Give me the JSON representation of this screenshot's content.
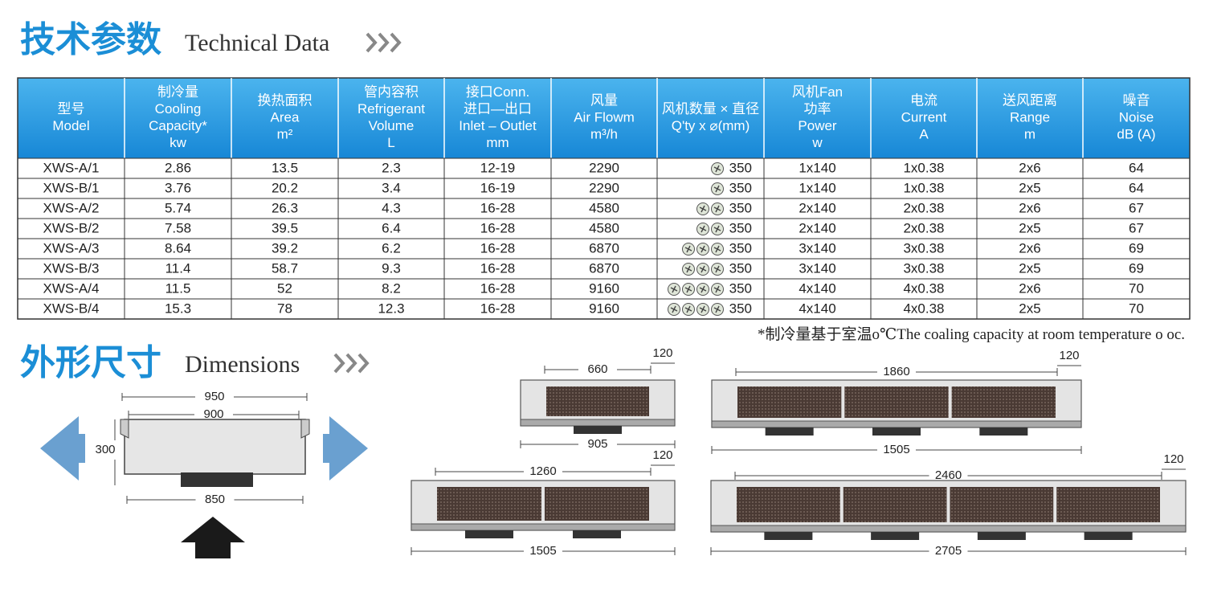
{
  "header": {
    "title_cn": "技术参数",
    "title_en": "Technical Data"
  },
  "table": {
    "columns": [
      [
        "型号",
        "Model"
      ],
      [
        "制冷量",
        "Cooling",
        "Capacity*",
        "kw"
      ],
      [
        "换热面积",
        "Area",
        "m²"
      ],
      [
        "管内容积",
        "Refrigerant",
        "Volume",
        "L"
      ],
      [
        "接口Conn.",
        "进口—出口",
        "Inlet – Outlet",
        "mm"
      ],
      [
        "风量",
        "Air Flowm",
        "m³/h"
      ],
      [
        "风机数量 × 直径",
        "Q'ty x ⌀(mm)"
      ],
      [
        "风机Fan",
        "功率",
        "Power",
        "w"
      ],
      [
        "电流",
        "Current",
        "A"
      ],
      [
        "送风距离",
        "Range",
        "m"
      ],
      [
        "噪音",
        "Noise",
        "dB (A)"
      ]
    ],
    "rows": [
      [
        "XWS-A/1",
        "2.86",
        "13.5",
        "2.3",
        "12-19",
        "2290",
        "350",
        "1x140",
        "1x0.38",
        "2x6",
        "64"
      ],
      [
        "XWS-B/1",
        "3.76",
        "20.2",
        "3.4",
        "16-19",
        "2290",
        "350",
        "1x140",
        "1x0.38",
        "2x5",
        "64"
      ],
      [
        "XWS-A/2",
        "5.74",
        "26.3",
        "4.3",
        "16-28",
        "4580",
        "350",
        "2x140",
        "2x0.38",
        "2x6",
        "67"
      ],
      [
        "XWS-B/2",
        "7.58",
        "39.5",
        "6.4",
        "16-28",
        "4580",
        "350",
        "2x140",
        "2x0.38",
        "2x5",
        "67"
      ],
      [
        "XWS-A/3",
        "8.64",
        "39.2",
        "6.2",
        "16-28",
        "6870",
        "350",
        "3x140",
        "3x0.38",
        "2x6",
        "69"
      ],
      [
        "XWS-B/3",
        "11.4",
        "58.7",
        "9.3",
        "16-28",
        "6870",
        "350",
        "3x140",
        "3x0.38",
        "2x5",
        "69"
      ],
      [
        "XWS-A/4",
        "11.5",
        "52",
        "8.2",
        "16-28",
        "9160",
        "350",
        "4x140",
        "4x0.38",
        "2x6",
        "70"
      ],
      [
        "XWS-B/4",
        "15.3",
        "78",
        "12.3",
        "16-28",
        "9160",
        "350",
        "4x140",
        "4x0.38",
        "2x5",
        "70"
      ]
    ],
    "fan_icons": [
      1,
      1,
      2,
      2,
      3,
      3,
      4,
      4
    ],
    "footnote": "*制冷量基于室温o℃The coaling capacity at room temperature o oc."
  },
  "dimensions": {
    "title_cn": "外形尺寸",
    "title_en": "Dimensions",
    "front_view": {
      "width_outer": "950",
      "width_inner": "900",
      "height": "300",
      "width_base": "850"
    },
    "units": [
      {
        "panels": 1,
        "top": "660",
        "end": "120",
        "bottom": "905"
      },
      {
        "panels": 3,
        "top": "1860",
        "end": "120",
        "bottom": "1505"
      },
      {
        "panels": 2,
        "top": "1260",
        "end": "120",
        "bottom": "1505"
      },
      {
        "panels": 4,
        "top": "2460",
        "end": "120",
        "bottom": "2705"
      }
    ]
  }
}
